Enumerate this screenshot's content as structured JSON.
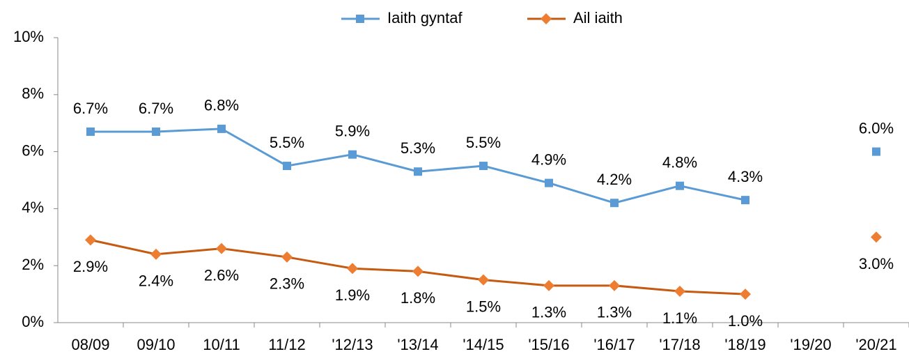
{
  "chart_data": {
    "type": "line",
    "categories": [
      "08/09",
      "09/10",
      "10/11",
      "11/12",
      "'12/13",
      "'13/14",
      "'14/15",
      "'15/16",
      "'16/17",
      "'17/18",
      "'18/19",
      "'19/20",
      "'20/21"
    ],
    "series": [
      {
        "name": "Iaith gyntaf",
        "color": "#5b9bd5",
        "marker": "square",
        "values": [
          6.7,
          6.7,
          6.8,
          5.5,
          5.9,
          5.3,
          5.5,
          4.9,
          4.2,
          4.8,
          4.3,
          null,
          6.0
        ],
        "value_labels": [
          "6.7%",
          "6.7%",
          "6.8%",
          "5.5%",
          "5.9%",
          "5.3%",
          "5.5%",
          "4.9%",
          "4.2%",
          "4.8%",
          "4.3%",
          null,
          "6.0%"
        ]
      },
      {
        "name": "Ail iaith",
        "color": "#ed7d31",
        "line_color": "#c55a11",
        "marker": "diamond",
        "values": [
          2.9,
          2.4,
          2.6,
          2.3,
          1.9,
          1.8,
          1.5,
          1.3,
          1.3,
          1.1,
          1.0,
          null,
          3.0
        ],
        "value_labels": [
          "2.9%",
          "2.4%",
          "2.6%",
          "2.3%",
          "1.9%",
          "1.8%",
          "1.5%",
          "1.3%",
          "1.3%",
          "1.1%",
          "1.0%",
          null,
          "3.0%"
        ]
      }
    ],
    "ylim": [
      0,
      10
    ],
    "yticks": [
      {
        "value": 0,
        "label": "0%"
      },
      {
        "value": 2,
        "label": "2%"
      },
      {
        "value": 4,
        "label": "4%"
      },
      {
        "value": 6,
        "label": "6%"
      },
      {
        "value": 8,
        "label": "8%"
      },
      {
        "value": 10,
        "label": "10%"
      }
    ],
    "legend": "top"
  }
}
